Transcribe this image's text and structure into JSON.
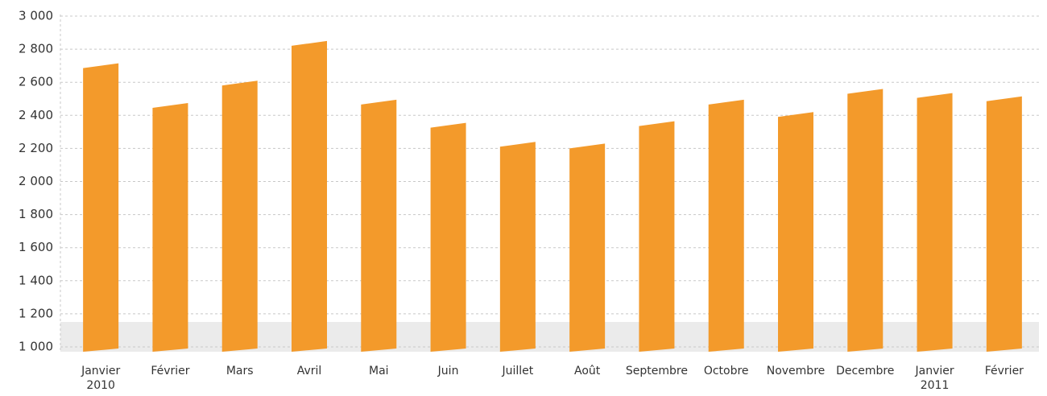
{
  "chart_data": {
    "type": "bar",
    "categories": [
      "Janvier\n2010",
      "Février",
      "Mars",
      "Avril",
      "Mai",
      "Juin",
      "Juillet",
      "Août",
      "Septembre",
      "Octobre",
      "Novembre",
      "Decembre",
      "Janvier\n2011",
      "Février"
    ],
    "values": [
      2700,
      2460,
      2595,
      2835,
      2480,
      2340,
      2225,
      2215,
      2350,
      2480,
      2405,
      2545,
      2520,
      2500
    ],
    "color": "#f39a2b",
    "ylim": [
      1000,
      3000
    ],
    "yticks": [
      {
        "value": 1000,
        "label": "1 000"
      },
      {
        "value": 1200,
        "label": "1 200"
      },
      {
        "value": 1400,
        "label": "1 400"
      },
      {
        "value": 1600,
        "label": "1 600"
      },
      {
        "value": 1800,
        "label": "1 800"
      },
      {
        "value": 2000,
        "label": "2 000"
      },
      {
        "value": 2200,
        "label": "2 200"
      },
      {
        "value": 2400,
        "label": "2 400"
      },
      {
        "value": 2600,
        "label": "2 600"
      },
      {
        "value": 2800,
        "label": "2 800"
      },
      {
        "value": 3000,
        "label": "3 000"
      }
    ],
    "grid": true
  }
}
